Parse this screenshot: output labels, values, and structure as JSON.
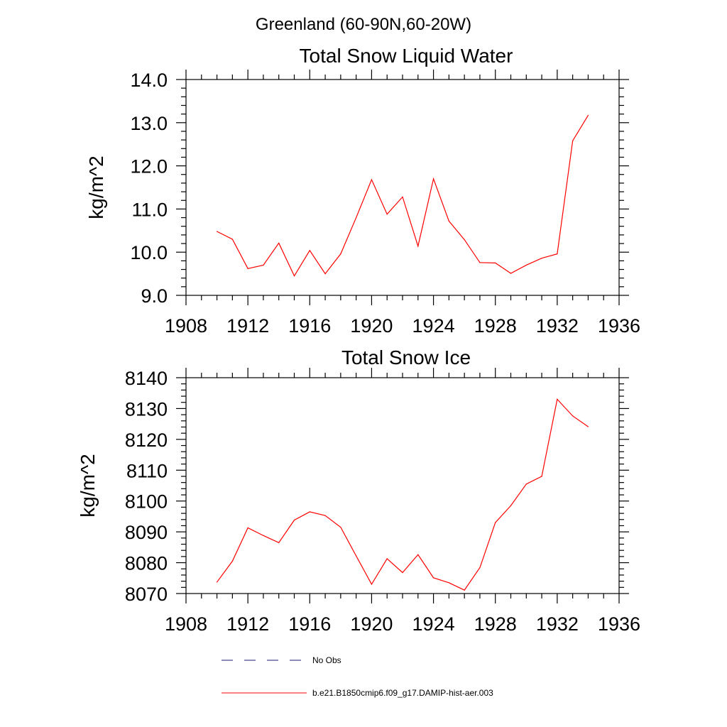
{
  "figure_title": "Greenland (60-90N,60-20W)",
  "legend": [
    {
      "label": "No Obs",
      "color": "#1a1a6e",
      "dash": true
    },
    {
      "label": "b.e21.B1850cmip6.f09_g17.DAMIP-hist-aer.003",
      "color": "#ff0000",
      "dash": false
    }
  ],
  "chart_data": [
    {
      "type": "line",
      "title": "Total Snow Liquid Water",
      "xlabel": "",
      "ylabel": "kg/m^2",
      "xlim": [
        1908,
        1936
      ],
      "ylim": [
        9.0,
        14.0
      ],
      "x_ticks": [
        "1908",
        "1912",
        "1916",
        "1920",
        "1924",
        "1928",
        "1932",
        "1936"
      ],
      "y_ticks": [
        "9.0",
        "10.0",
        "11.0",
        "12.0",
        "13.0",
        "14.0"
      ],
      "x": [
        1910,
        1911,
        1912,
        1913,
        1914,
        1915,
        1916,
        1917,
        1918,
        1919,
        1920,
        1921,
        1922,
        1923,
        1924,
        1925,
        1926,
        1927,
        1928,
        1929,
        1930,
        1931,
        1932,
        1933,
        1934
      ],
      "series": [
        {
          "color": "#ff0000",
          "values": [
            10.48,
            10.3,
            9.62,
            9.7,
            10.21,
            9.45,
            10.04,
            9.5,
            9.96,
            10.8,
            11.68,
            10.88,
            11.28,
            10.14,
            11.7,
            10.72,
            10.29,
            9.76,
            9.75,
            9.51,
            9.7,
            9.86,
            9.96,
            12.58,
            13.17
          ]
        }
      ]
    },
    {
      "type": "line",
      "title": "Total Snow Ice",
      "xlabel": "",
      "ylabel": "kg/m^2",
      "xlim": [
        1908,
        1936
      ],
      "ylim": [
        8070,
        8140
      ],
      "x_ticks": [
        "1908",
        "1912",
        "1916",
        "1920",
        "1924",
        "1928",
        "1932",
        "1936"
      ],
      "y_ticks": [
        "8070",
        "8080",
        "8090",
        "8100",
        "8110",
        "8120",
        "8130",
        "8140"
      ],
      "x": [
        1910,
        1911,
        1912,
        1913,
        1914,
        1915,
        1916,
        1917,
        1918,
        1919,
        1920,
        1921,
        1922,
        1923,
        1924,
        1925,
        1926,
        1927,
        1928,
        1929,
        1930,
        1931,
        1932,
        1933,
        1934
      ],
      "series": [
        {
          "color": "#ff0000",
          "values": [
            8073.7,
            8080.5,
            8091.3,
            8088.8,
            8086.5,
            8093.8,
            8096.5,
            8095.3,
            8091.5,
            8082.2,
            8073.0,
            8081.3,
            8076.8,
            8082.6,
            8075.1,
            8073.5,
            8071.1,
            8078.4,
            8093.0,
            8098.5,
            8105.5,
            8108.0,
            8133.0,
            8127.6,
            8124.1
          ]
        }
      ]
    }
  ]
}
